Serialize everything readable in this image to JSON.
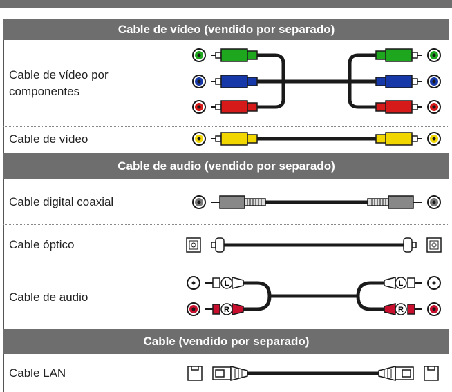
{
  "sections": [
    {
      "title": "Cable de vídeo (vendido por separado)",
      "rows": [
        {
          "label": "Cable de vídeo por componentes"
        },
        {
          "label": "Cable de vídeo"
        }
      ]
    },
    {
      "title": "Cable de audio (vendido por separado)",
      "rows": [
        {
          "label": "Cable digital coaxial"
        },
        {
          "label": "Cable óptico"
        },
        {
          "label": "Cable de audio",
          "plug_labels": [
            "L",
            "R"
          ]
        }
      ]
    },
    {
      "title": "Cable (vendido por separado)",
      "rows": [
        {
          "label": "Cable LAN"
        }
      ]
    }
  ]
}
